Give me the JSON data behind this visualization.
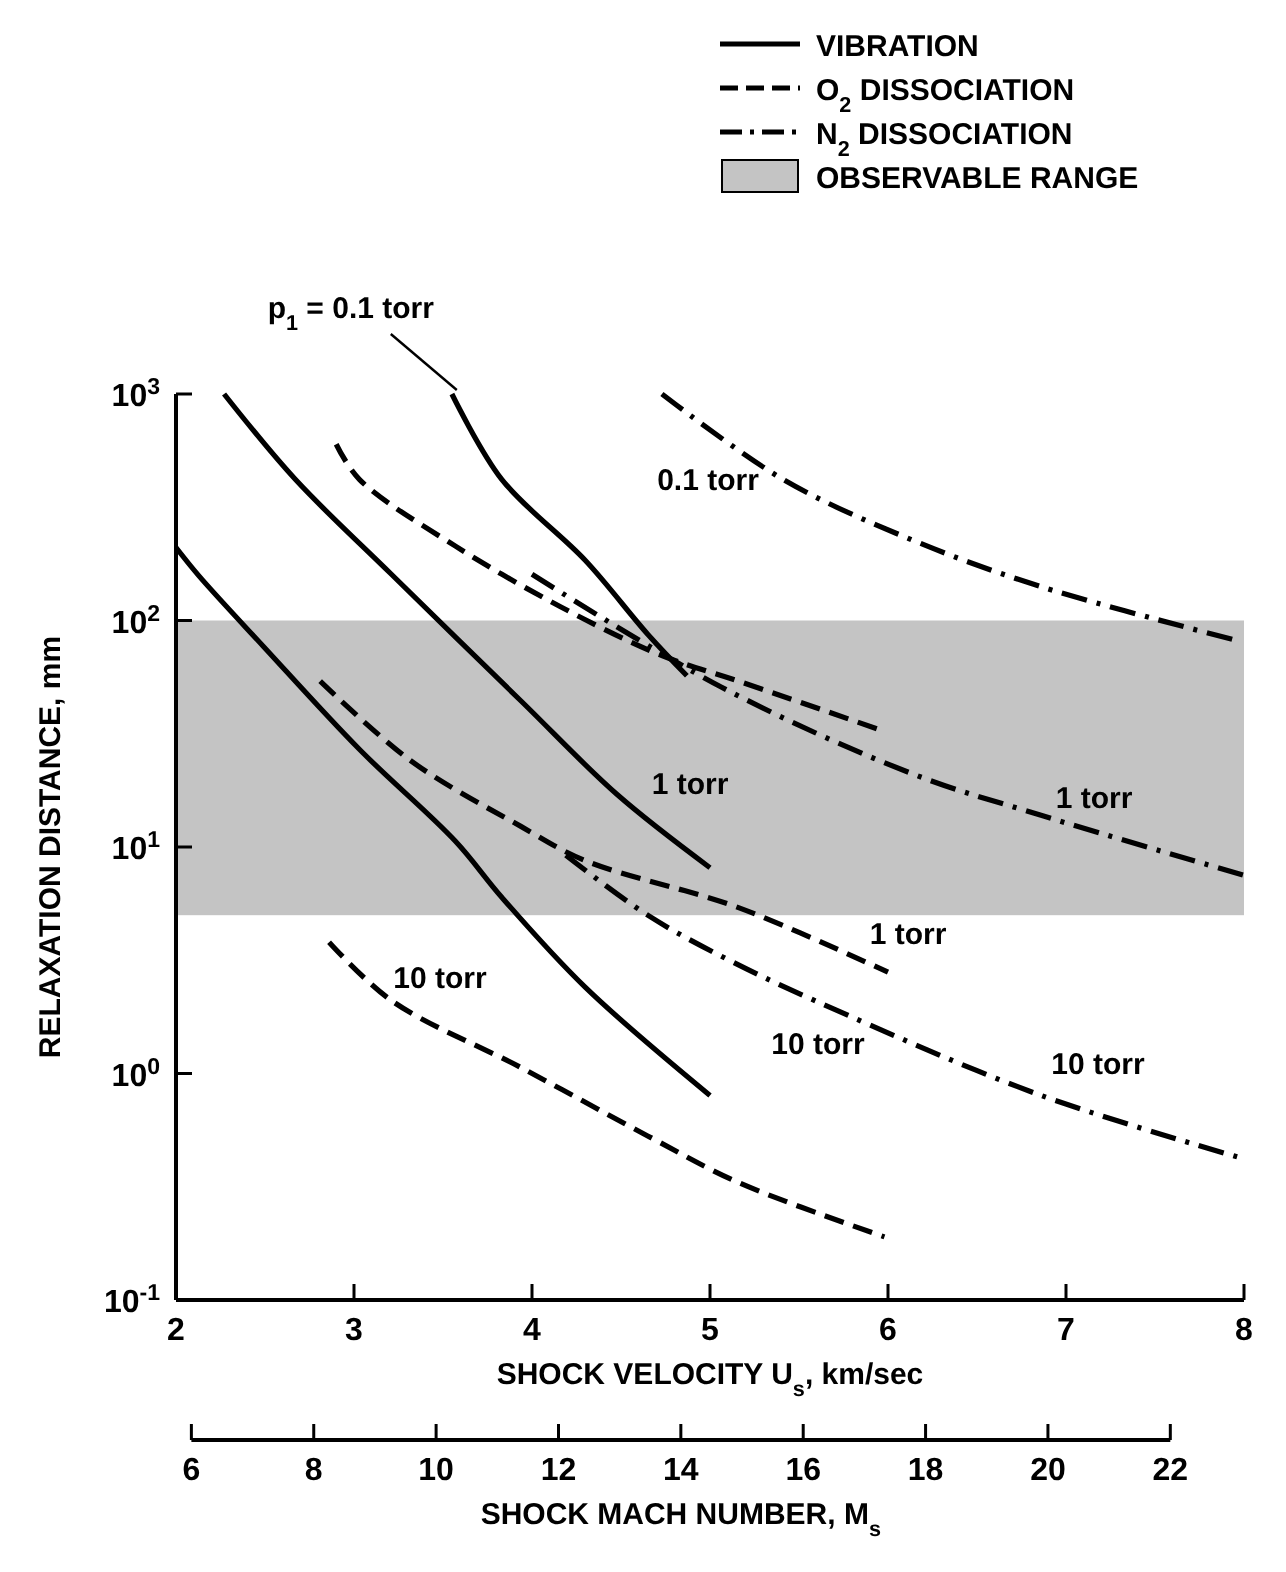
{
  "chart_data": {
    "type": "line",
    "xlabel": "SHOCK VELOCITY U$_{s}$, km/sec",
    "ylabel": "RELAXATION DISTANCE, mm",
    "x2label": "SHOCK MACH NUMBER, M$_{s}$",
    "xlim": [
      2,
      8
    ],
    "xticks": [
      2,
      3,
      4,
      5,
      6,
      7,
      8
    ],
    "ylim": [
      0.1,
      1000
    ],
    "yticks": [
      {
        "value": 0.1,
        "label": "10$^{-1}$"
      },
      {
        "value": 1,
        "label": "10$^{0}$"
      },
      {
        "value": 10,
        "label": "10$^{1}$"
      },
      {
        "value": 100,
        "label": "10$^{2}$"
      },
      {
        "value": 1000,
        "label": "10$^{3}$"
      }
    ],
    "x2lim": [
      6,
      22
    ],
    "x2ticks": [
      6,
      8,
      10,
      12,
      14,
      16,
      18,
      20,
      22
    ],
    "log": "y",
    "legend": "top right",
    "bands": [
      {
        "axis": "y",
        "from": 5,
        "to": 100,
        "label": "OBSERVABLE RANGE",
        "color": "#c4c4c4"
      }
    ],
    "series": [
      {
        "name": "VIBRATION",
        "color": "#000000",
        "line_style": "solid",
        "x": [
          3.55,
          3.83,
          4.3,
          4.65,
          4.87
        ],
        "values": [
          1000,
          420,
          184,
          87,
          57
        ]
      },
      {
        "color": "#000000",
        "line_style": "solid",
        "x": [
          2.27,
          2.67,
          3.21,
          3.94,
          4.48,
          5.0
        ],
        "values": [
          1000,
          420,
          160,
          44,
          17,
          8.1
        ]
      },
      {
        "color": "#000000",
        "line_style": "solid",
        "x": [
          2,
          2.13,
          2.49,
          3.03,
          3.57,
          3.83,
          4.3,
          5.0
        ],
        "values": [
          210,
          157,
          77,
          27,
          10.6,
          6,
          2.4,
          0.8
        ]
      },
      {
        "name": "O$_{2}$ DISSOCIATION",
        "color": "#000000",
        "line_style": "dashed",
        "x": [
          2.9,
          3.03,
          3.57,
          4.16,
          4.73,
          5.16,
          5.95
        ],
        "values": [
          600,
          420,
          213,
          115,
          70,
          54,
          33
        ]
      },
      {
        "color": "#000000",
        "line_style": "dashed",
        "x": [
          2.81,
          3.32,
          3.94,
          4.3,
          5.16,
          6.0
        ],
        "values": [
          54,
          24,
          12.3,
          8.7,
          5.4,
          2.8
        ]
      },
      {
        "color": "#000000",
        "line_style": "dashed",
        "x": [
          2.86,
          3.21,
          3.94,
          4.65,
          5.16,
          5.98
        ],
        "values": [
          3.8,
          2.1,
          1.06,
          0.53,
          0.33,
          0.19
        ]
      },
      {
        "name": "N$_{2}$ DISSOCIATION",
        "color": "#000000",
        "line_style": "dashdot",
        "x": [
          4.73,
          5.41,
          6.14,
          6.86,
          7.95
        ],
        "values": [
          1000,
          420,
          226,
          141,
          82
        ]
      },
      {
        "color": "#000000",
        "line_style": "dashdot",
        "x": [
          4.0,
          5.06,
          6.14,
          6.86,
          8.0
        ],
        "values": [
          160,
          51,
          21,
          13.8,
          7.5
        ]
      },
      {
        "color": "#000000",
        "line_style": "dashdot",
        "x": [
          4.19,
          4.65,
          5.13,
          5.78,
          6.86,
          8.0
        ],
        "values": [
          9.2,
          5.0,
          3.1,
          1.8,
          0.8,
          0.42
        ]
      }
    ],
    "annotations": [
      {
        "text": "p$_{1}$ = 0.1 torr",
        "x": 3.6,
        "y": 1000
      },
      "0.1 torr",
      "1 torr",
      "1 torr",
      "1 torr",
      "10 torr",
      "10 torr",
      "10 torr"
    ]
  }
}
